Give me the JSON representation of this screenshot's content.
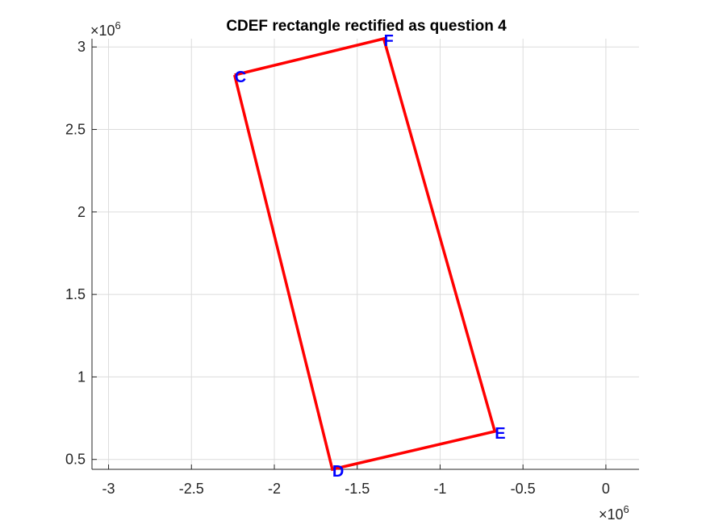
{
  "chart_data": {
    "type": "line",
    "title": "CDEF rectangle rectified as question 4",
    "xlabel": "",
    "ylabel": "",
    "x_exponent_label": {
      "base": "×10",
      "exp": "6"
    },
    "y_exponent_label": {
      "base": "×10",
      "exp": "6"
    },
    "xlim": [
      -3.1,
      0.2
    ],
    "ylim": [
      0.44,
      3.05
    ],
    "x_ticks": [
      -3,
      -2.5,
      -2,
      -1.5,
      -1,
      -0.5,
      0
    ],
    "x_tick_labels": [
      "-3",
      "-2.5",
      "-2",
      "-1.5",
      "-1",
      "-0.5",
      "0"
    ],
    "y_ticks": [
      0.5,
      1,
      1.5,
      2,
      2.5,
      3
    ],
    "y_tick_labels": [
      "0.5",
      "1",
      "1.5",
      "2",
      "2.5",
      "3"
    ],
    "grid": true,
    "series": [
      {
        "x": [
          -2.24,
          -1.65,
          -0.67,
          -1.34,
          -2.24
        ],
        "y": [
          2.83,
          0.44,
          0.67,
          3.05,
          2.83
        ]
      }
    ],
    "points": [
      {
        "label": "C",
        "x": -2.24,
        "y": 2.83
      },
      {
        "label": "D",
        "x": -1.65,
        "y": 0.44
      },
      {
        "label": "E",
        "x": -0.67,
        "y": 0.67
      },
      {
        "label": "F",
        "x": -1.34,
        "y": 3.05
      }
    ],
    "colors": {
      "line": "#ff0000",
      "labels": "#0000ff",
      "grid": "#dcdcdc",
      "axis": "#262626"
    }
  }
}
